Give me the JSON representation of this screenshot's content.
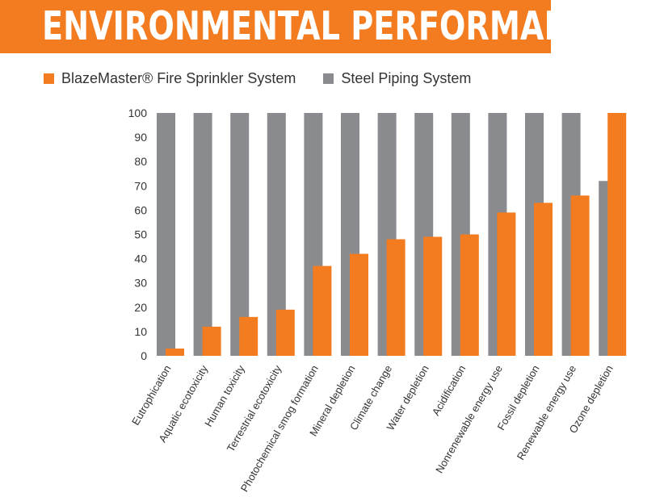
{
  "colors": {
    "accent": "#f47c20",
    "steel": "#8a8b8e",
    "title_text": "#ffffff"
  },
  "chart_data": {
    "type": "bar",
    "title": "ENVIRONMENTAL PERFORMANCE GAP",
    "ylim": [
      0,
      100
    ],
    "yticks": [
      0,
      10,
      20,
      30,
      40,
      50,
      60,
      70,
      80,
      90,
      100
    ],
    "grid": false,
    "legend_position": "top-left",
    "categories": [
      "Eutrophication",
      "Aquatic ecotoxicity",
      "Human toxicity",
      "Terrestrial ecotoxicity",
      "Photochemical smog formation",
      "Mineral depletion",
      "Climate change",
      "Water depletion",
      "Acidification",
      "Nonrenewable energy use",
      "Fossil depletion",
      "Renewable energy use",
      "Ozone depletion"
    ],
    "series": [
      {
        "name": "BlazeMaster® Fire Sprinkler System",
        "color": "#f47c20",
        "values": [
          3,
          12,
          16,
          19,
          37,
          42,
          48,
          49,
          50,
          59,
          63,
          66,
          100
        ]
      },
      {
        "name": "Steel Piping System",
        "color": "#8a8b8e",
        "values": [
          100,
          100,
          100,
          100,
          100,
          100,
          100,
          100,
          100,
          100,
          100,
          100,
          72
        ]
      }
    ]
  }
}
